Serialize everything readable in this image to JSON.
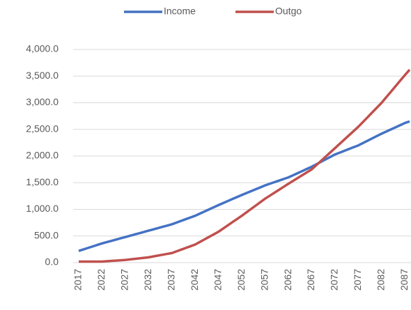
{
  "chart_data": {
    "type": "line",
    "categories": [
      "2017",
      null,
      null,
      null,
      null,
      "2022",
      null,
      null,
      null,
      null,
      "2027",
      null,
      null,
      null,
      null,
      "2032",
      null,
      null,
      null,
      null,
      "2037",
      null,
      null,
      null,
      null,
      "2042",
      null,
      null,
      null,
      null,
      "2047",
      null,
      null,
      null,
      null,
      "2052",
      null,
      null,
      null,
      null,
      "2057",
      null,
      null,
      null,
      null,
      "2062",
      null,
      null,
      null,
      null,
      "2067",
      null,
      null,
      null,
      null,
      "2072",
      null,
      null,
      null,
      null,
      "2077",
      null,
      null,
      null,
      null,
      "2082",
      null,
      null,
      null,
      null,
      "2087",
      null
    ],
    "series": [
      {
        "name": "Income",
        "color": "#4472c4",
        "values": [
          220,
          248,
          276,
          304,
          332,
          360,
          384,
          408,
          432,
          456,
          480,
          504,
          528,
          552,
          576,
          600,
          624,
          648,
          672,
          696,
          720,
          752,
          784,
          816,
          848,
          880,
          920,
          960,
          1000,
          1040,
          1080,
          1118,
          1156,
          1194,
          1232,
          1270,
          1306,
          1342,
          1378,
          1414,
          1450,
          1480,
          1510,
          1540,
          1570,
          1600,
          1640,
          1680,
          1720,
          1760,
          1800,
          1846,
          1892,
          1938,
          1984,
          2030,
          2064,
          2098,
          2132,
          2166,
          2200,
          2244,
          2288,
          2332,
          2376,
          2420,
          2460,
          2500,
          2540,
          2580,
          2620,
          2650
        ]
      },
      {
        "name": "Outgo",
        "color": "#c0504d",
        "values": [
          20,
          20,
          20,
          20,
          20,
          20,
          26,
          32,
          38,
          44,
          50,
          60,
          70,
          80,
          90,
          100,
          116,
          132,
          148,
          164,
          180,
          212,
          244,
          276,
          308,
          340,
          388,
          436,
          484,
          532,
          580,
          640,
          700,
          760,
          820,
          880,
          944,
          1008,
          1072,
          1136,
          1200,
          1256,
          1312,
          1368,
          1424,
          1480,
          1534,
          1588,
          1642,
          1696,
          1750,
          1830,
          1910,
          1990,
          2070,
          2150,
          2230,
          2310,
          2390,
          2470,
          2550,
          2640,
          2730,
          2820,
          2910,
          3000,
          3104,
          3208,
          3312,
          3416,
          3520,
          3620
        ]
      }
    ],
    "ylim": [
      0,
      4000
    ],
    "yticks": [
      {
        "value": 0,
        "label": "0.0"
      },
      {
        "value": 500,
        "label": "500.0"
      },
      {
        "value": 1000,
        "label": "1,000.0"
      },
      {
        "value": 1500,
        "label": "1,500.0"
      },
      {
        "value": 2000,
        "label": "2,000.0"
      },
      {
        "value": 2500,
        "label": "2,500.0"
      },
      {
        "value": 3000,
        "label": "3,000.0"
      },
      {
        "value": 3500,
        "label": "3,500.0"
      },
      {
        "value": 4000,
        "label": "4,000.0"
      }
    ],
    "grid": true,
    "legend": "top"
  }
}
